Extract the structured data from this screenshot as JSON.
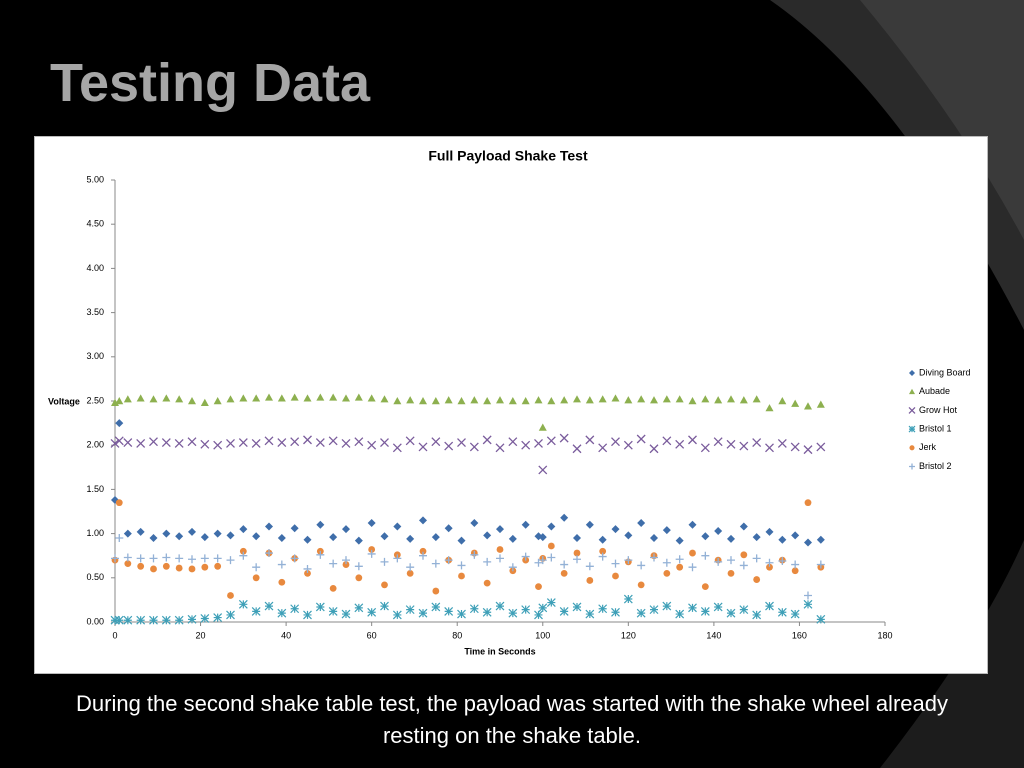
{
  "slide": {
    "title": "Testing Data",
    "caption": "During the second shake table test, the payload was started with the shake wheel already resting on the shake table."
  },
  "chart_data": {
    "type": "scatter",
    "title": "Full Payload Shake Test",
    "x_label": "Time in Seconds",
    "y_label": "Voltage",
    "xlim": [
      0,
      180
    ],
    "xticks": [
      0,
      20,
      40,
      60,
      80,
      100,
      120,
      140,
      160,
      180
    ],
    "ylim": [
      0,
      5
    ],
    "yticks": [
      {
        "value": 0,
        "label": "0.00"
      },
      {
        "value": 0.5,
        "label": "0.50"
      },
      {
        "value": 1,
        "label": "1.00"
      },
      {
        "value": 1.5,
        "label": "1.50"
      },
      {
        "value": 2,
        "label": "2.00"
      },
      {
        "value": 2.5,
        "label": "2.50"
      },
      {
        "value": 3,
        "label": "3.00"
      },
      {
        "value": 3.5,
        "label": "3.50"
      },
      {
        "value": 4,
        "label": "4.00"
      },
      {
        "value": 4.5,
        "label": "4.50"
      },
      {
        "value": 5,
        "label": "5.00"
      }
    ],
    "grid": false,
    "legend": "right",
    "x": [
      0,
      1,
      3,
      6,
      9,
      12,
      15,
      18,
      21,
      24,
      27,
      30,
      33,
      36,
      39,
      42,
      45,
      48,
      51,
      54,
      57,
      60,
      63,
      66,
      69,
      72,
      75,
      78,
      81,
      84,
      87,
      90,
      93,
      96,
      99,
      100,
      102,
      105,
      108,
      111,
      114,
      117,
      120,
      123,
      126,
      129,
      132,
      135,
      138,
      141,
      144,
      147,
      150,
      153,
      156,
      159,
      162,
      165
    ],
    "series": [
      {
        "name": "Diving Board",
        "color": "#3f6eaa",
        "marker": "diamond",
        "values": [
          1.38,
          2.25,
          1.0,
          1.02,
          0.95,
          1.0,
          0.97,
          1.02,
          0.96,
          1.0,
          0.98,
          1.05,
          0.97,
          1.08,
          0.95,
          1.06,
          0.93,
          1.1,
          0.96,
          1.05,
          0.92,
          1.12,
          0.97,
          1.08,
          0.94,
          1.15,
          0.96,
          1.06,
          0.92,
          1.12,
          0.98,
          1.05,
          0.94,
          1.1,
          0.97,
          0.96,
          1.08,
          1.18,
          0.95,
          1.1,
          0.93,
          1.05,
          0.98,
          1.12,
          0.95,
          1.04,
          0.92,
          1.1,
          0.97,
          1.03,
          0.94,
          1.08,
          0.96,
          1.02,
          0.93,
          0.98,
          0.9,
          0.93
        ]
      },
      {
        "name": "Aubade",
        "color": "#8db04f",
        "marker": "triangle",
        "values": [
          2.48,
          2.5,
          2.52,
          2.53,
          2.52,
          2.53,
          2.52,
          2.5,
          2.48,
          2.5,
          2.52,
          2.53,
          2.53,
          2.54,
          2.53,
          2.54,
          2.53,
          2.54,
          2.54,
          2.53,
          2.54,
          2.53,
          2.52,
          2.5,
          2.51,
          2.5,
          2.5,
          2.51,
          2.5,
          2.51,
          2.5,
          2.51,
          2.5,
          2.5,
          2.51,
          2.2,
          2.5,
          2.51,
          2.52,
          2.51,
          2.52,
          2.53,
          2.51,
          2.52,
          2.51,
          2.52,
          2.52,
          2.5,
          2.52,
          2.51,
          2.52,
          2.51,
          2.52,
          2.42,
          2.5,
          2.47,
          2.44,
          2.46
        ]
      },
      {
        "name": "Grow Hot",
        "color": "#7a5c9c",
        "marker": "x",
        "values": [
          2.02,
          2.05,
          2.03,
          2.02,
          2.04,
          2.03,
          2.02,
          2.04,
          2.01,
          2.0,
          2.02,
          2.03,
          2.02,
          2.05,
          2.03,
          2.04,
          2.06,
          2.03,
          2.05,
          2.02,
          2.04,
          2.0,
          2.03,
          1.97,
          2.05,
          1.98,
          2.04,
          1.99,
          2.03,
          1.98,
          2.06,
          1.97,
          2.04,
          2.0,
          2.02,
          1.72,
          2.05,
          2.08,
          1.96,
          2.06,
          1.97,
          2.04,
          2.0,
          2.07,
          1.96,
          2.05,
          2.01,
          2.06,
          1.97,
          2.04,
          2.01,
          1.99,
          2.03,
          1.97,
          2.02,
          1.98,
          1.95,
          1.98
        ]
      },
      {
        "name": "Bristol 1",
        "color": "#3fa0b8",
        "marker": "asterisk",
        "values": [
          0.02,
          0.02,
          0.02,
          0.02,
          0.02,
          0.02,
          0.02,
          0.03,
          0.04,
          0.05,
          0.08,
          0.2,
          0.12,
          0.18,
          0.1,
          0.15,
          0.08,
          0.17,
          0.12,
          0.09,
          0.16,
          0.11,
          0.18,
          0.08,
          0.14,
          0.1,
          0.17,
          0.12,
          0.09,
          0.15,
          0.11,
          0.18,
          0.1,
          0.14,
          0.08,
          0.16,
          0.22,
          0.12,
          0.17,
          0.09,
          0.15,
          0.11,
          0.26,
          0.1,
          0.14,
          0.18,
          0.09,
          0.16,
          0.12,
          0.17,
          0.1,
          0.14,
          0.08,
          0.18,
          0.11,
          0.09,
          0.2,
          0.03
        ]
      },
      {
        "name": "Jerk",
        "color": "#e8893e",
        "marker": "circle",
        "values": [
          0.7,
          1.35,
          0.66,
          0.63,
          0.6,
          0.63,
          0.61,
          0.6,
          0.62,
          0.63,
          0.3,
          0.8,
          0.5,
          0.78,
          0.45,
          0.72,
          0.55,
          0.8,
          0.38,
          0.65,
          0.5,
          0.82,
          0.42,
          0.76,
          0.55,
          0.8,
          0.35,
          0.7,
          0.52,
          0.78,
          0.44,
          0.82,
          0.58,
          0.7,
          0.4,
          0.72,
          0.86,
          0.55,
          0.78,
          0.47,
          0.8,
          0.52,
          0.68,
          0.42,
          0.75,
          0.55,
          0.62,
          0.78,
          0.4,
          0.7,
          0.55,
          0.76,
          0.48,
          0.62,
          0.7,
          0.58,
          1.35,
          0.62
        ]
      },
      {
        "name": "Bristol 2",
        "color": "#93b1d6",
        "marker": "plus",
        "values": [
          0.72,
          0.95,
          0.73,
          0.72,
          0.72,
          0.73,
          0.72,
          0.71,
          0.72,
          0.72,
          0.7,
          0.75,
          0.62,
          0.78,
          0.65,
          0.72,
          0.6,
          0.76,
          0.66,
          0.7,
          0.63,
          0.77,
          0.68,
          0.72,
          0.62,
          0.75,
          0.66,
          0.7,
          0.64,
          0.76,
          0.68,
          0.72,
          0.62,
          0.74,
          0.67,
          0.7,
          0.73,
          0.65,
          0.71,
          0.63,
          0.74,
          0.66,
          0.7,
          0.64,
          0.73,
          0.67,
          0.71,
          0.62,
          0.75,
          0.68,
          0.7,
          0.64,
          0.72,
          0.67,
          0.69,
          0.65,
          0.3,
          0.65
        ]
      }
    ]
  }
}
